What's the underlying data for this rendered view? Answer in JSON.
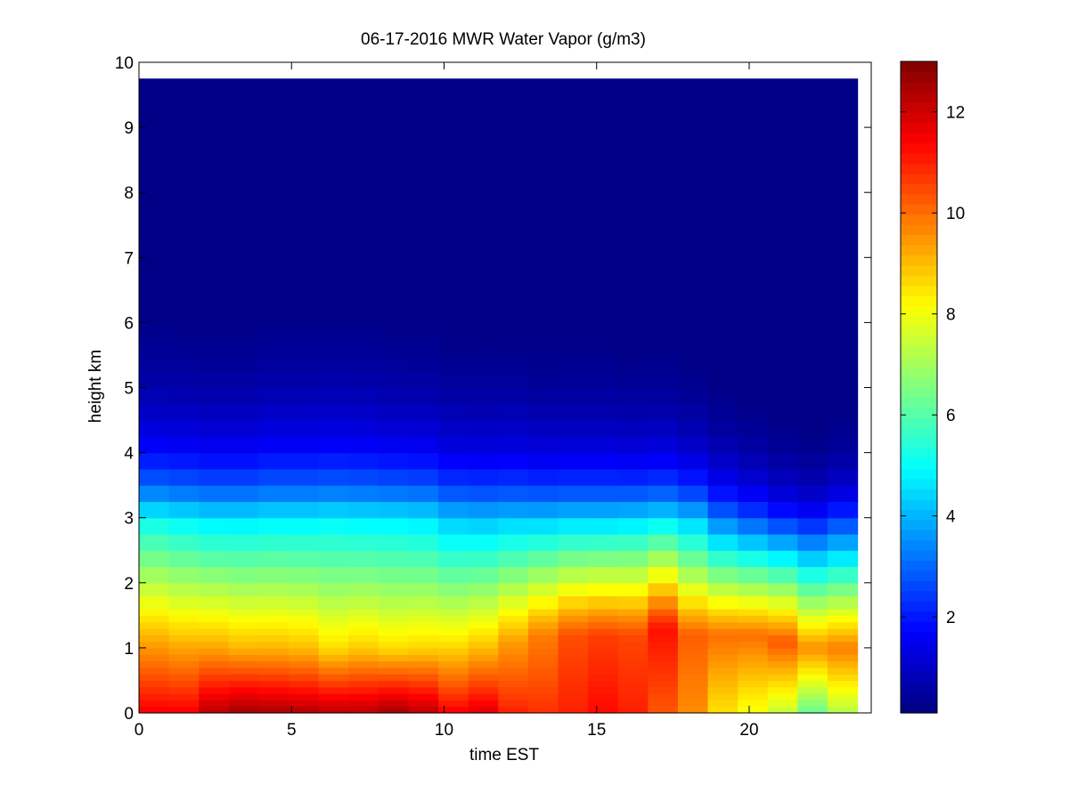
{
  "chart_data": {
    "type": "heatmap",
    "title": "06-17-2016 MWR Water Vapor (g/m3)",
    "xlabel": "time EST",
    "ylabel": "height km",
    "xlim": [
      0,
      24
    ],
    "ylim": [
      0,
      10
    ],
    "x_ticks": [
      0,
      5,
      10,
      15,
      20
    ],
    "y_ticks": [
      0,
      1,
      2,
      3,
      4,
      5,
      6,
      7,
      8,
      9,
      10
    ],
    "colorbar": {
      "colormap": "jet",
      "range": [
        0.1,
        13
      ],
      "ticks": [
        2,
        4,
        6,
        8,
        10,
        12
      ]
    },
    "time_bins": [
      0,
      1,
      2,
      3,
      4,
      5,
      6,
      7,
      8,
      9,
      10,
      11,
      12,
      13,
      14,
      15,
      16,
      17,
      18,
      19,
      20,
      21,
      22,
      23
    ],
    "height_levels": [
      0,
      0.1,
      0.2,
      0.3,
      0.4,
      0.5,
      0.6,
      0.7,
      0.8,
      0.9,
      1.0,
      1.1,
      1.2,
      1.3,
      1.4,
      1.5,
      1.6,
      1.8,
      2.0,
      2.25,
      2.5,
      2.75,
      3.0,
      3.25,
      3.5,
      3.75,
      4.0,
      4.25,
      4.5,
      4.75,
      5.0,
      5.25,
      5.5,
      5.75,
      6.0,
      6.5,
      7.0,
      8.0,
      9.0
    ],
    "max_height": 9.75,
    "profiles": [
      {
        "surface": 11.5,
        "peak": 9.5,
        "peak_height": 1.0,
        "h3": 5.0,
        "scale": 1.0
      },
      {
        "surface": 11.5,
        "peak": 9.3,
        "peak_height": 1.0,
        "h3": 4.8,
        "scale": 1.0
      },
      {
        "surface": 12.3,
        "peak": 9.3,
        "peak_height": 1.0,
        "h3": 4.6,
        "scale": 1.0
      },
      {
        "surface": 12.6,
        "peak": 9.1,
        "peak_height": 1.0,
        "h3": 4.6,
        "scale": 1.0
      },
      {
        "surface": 12.5,
        "peak": 9.1,
        "peak_height": 1.0,
        "h3": 4.7,
        "scale": 1.05
      },
      {
        "surface": 12.4,
        "peak": 9.0,
        "peak_height": 1.0,
        "h3": 4.7,
        "scale": 1.05
      },
      {
        "surface": 12.3,
        "peak": 8.6,
        "peak_height": 1.0,
        "h3": 4.8,
        "scale": 1.05
      },
      {
        "surface": 12.3,
        "peak": 8.8,
        "peak_height": 1.0,
        "h3": 4.7,
        "scale": 1.05
      },
      {
        "surface": 12.6,
        "peak": 8.6,
        "peak_height": 1.0,
        "h3": 4.7,
        "scale": 1.0
      },
      {
        "surface": 12.3,
        "peak": 8.7,
        "peak_height": 1.0,
        "h3": 4.6,
        "scale": 1.0
      },
      {
        "surface": 11.5,
        "peak": 8.7,
        "peak_height": 1.0,
        "h3": 4.2,
        "scale": 0.95
      },
      {
        "surface": 11.8,
        "peak": 9.0,
        "peak_height": 1.0,
        "h3": 4.1,
        "scale": 0.95
      },
      {
        "surface": 11.0,
        "peak": 9.4,
        "peak_height": 1.1,
        "h3": 4.2,
        "scale": 0.95
      },
      {
        "surface": 10.8,
        "peak": 9.8,
        "peak_height": 1.2,
        "h3": 4.2,
        "scale": 0.9
      },
      {
        "surface": 11.0,
        "peak": 10.4,
        "peak_height": 1.2,
        "h3": 4.3,
        "scale": 0.9
      },
      {
        "surface": 11.3,
        "peak": 10.6,
        "peak_height": 1.2,
        "h3": 4.3,
        "scale": 0.9
      },
      {
        "surface": 11.0,
        "peak": 10.5,
        "peak_height": 1.2,
        "h3": 4.4,
        "scale": 0.85
      },
      {
        "surface": 10.3,
        "peak": 11.2,
        "peak_height": 1.3,
        "h3": 4.6,
        "scale": 0.85
      },
      {
        "surface": 9.6,
        "peak": 10.2,
        "peak_height": 1.2,
        "h3": 4.2,
        "scale": 0.8
      },
      {
        "surface": 8.5,
        "peak": 10.0,
        "peak_height": 1.2,
        "h3": 3.2,
        "scale": 0.75
      },
      {
        "surface": 8.0,
        "peak": 10.0,
        "peak_height": 1.2,
        "h3": 2.7,
        "scale": 0.7
      },
      {
        "surface": 7.4,
        "peak": 10.3,
        "peak_height": 1.1,
        "h3": 2.2,
        "scale": 0.65
      },
      {
        "surface": 6.2,
        "peak": 9.6,
        "peak_height": 1.0,
        "h3": 1.9,
        "scale": 0.6
      },
      {
        "surface": 7.2,
        "peak": 9.8,
        "peak_height": 1.0,
        "h3": 2.4,
        "scale": 0.65
      }
    ]
  }
}
